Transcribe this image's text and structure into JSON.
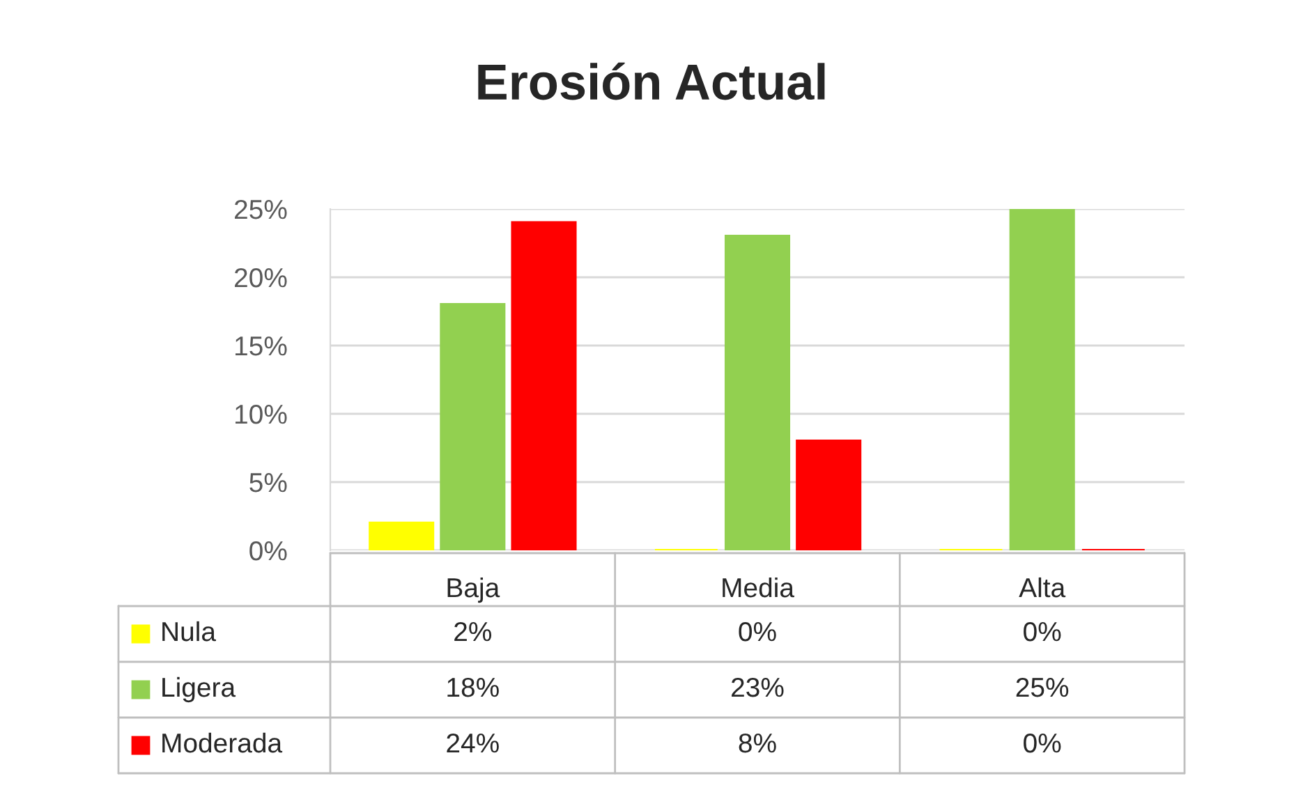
{
  "chart_data": {
    "type": "bar",
    "title": "Erosión Actual",
    "categories": [
      "Baja",
      "Media",
      "Alta"
    ],
    "series": [
      {
        "name": "Nula",
        "color": "#ffff00",
        "values": [
          2,
          0,
          0
        ],
        "value_labels": [
          "2%",
          "0%",
          "0%"
        ]
      },
      {
        "name": "Ligera",
        "color": "#92d050",
        "values": [
          18,
          23,
          25
        ],
        "value_labels": [
          "18%",
          "23%",
          "25%"
        ]
      },
      {
        "name": "Moderada",
        "color": "#ff0000",
        "values": [
          24,
          8,
          0
        ],
        "value_labels": [
          "24%",
          "8%",
          "0%"
        ]
      }
    ],
    "ylim": [
      0,
      25
    ],
    "yticks": [
      {
        "value": 0,
        "label": "0%"
      },
      {
        "value": 5,
        "label": "5%"
      },
      {
        "value": 10,
        "label": "10%"
      },
      {
        "value": 15,
        "label": "15%"
      },
      {
        "value": 20,
        "label": "20%"
      },
      {
        "value": 25,
        "label": "25%"
      }
    ],
    "grid": "y",
    "legend": "bottom"
  }
}
